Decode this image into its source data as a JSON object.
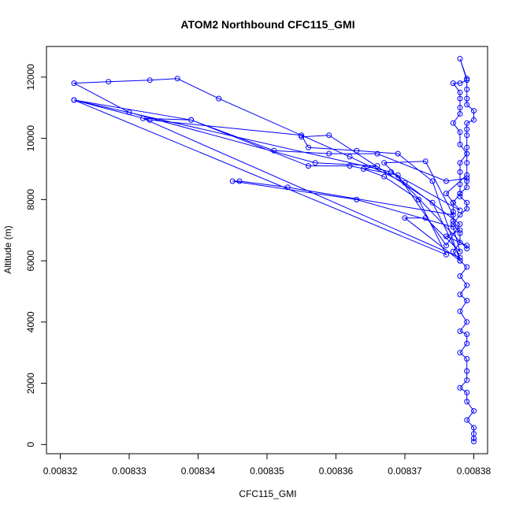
{
  "chart_data": {
    "type": "line",
    "title": "ATOM2 Northbound CFC115_GMI",
    "xlabel": "CFC115_GMI",
    "ylabel": "Altitude (m)",
    "xlim": [
      0.008318,
      0.008382
    ],
    "ylim": [
      -300,
      13000
    ],
    "x_ticks": [
      0.00832,
      0.00833,
      0.00834,
      0.00835,
      0.00836,
      0.00837,
      0.00838
    ],
    "x_tick_labels": [
      "0.00832",
      "0.00833",
      "0.00834",
      "0.00835",
      "0.00836",
      "0.00837",
      "0.00838"
    ],
    "y_ticks": [
      0,
      2000,
      4000,
      6000,
      8000,
      10000,
      12000
    ],
    "y_tick_labels": [
      "0",
      "2000",
      "4000",
      "6000",
      "8000",
      "10000",
      "12000"
    ],
    "grid": false,
    "marker": "open-circle",
    "color": "#0000ff",
    "series": [
      {
        "points": [
          [
            0.00838,
            100
          ],
          [
            0.00838,
            200
          ],
          [
            0.00838,
            350
          ],
          [
            0.00838,
            550
          ],
          [
            0.008379,
            800
          ],
          [
            0.00838,
            1100
          ],
          [
            0.008379,
            1400
          ],
          [
            0.008379,
            1700
          ],
          [
            0.008378,
            1850
          ],
          [
            0.008379,
            2100
          ],
          [
            0.008379,
            2400
          ],
          [
            0.008379,
            2800
          ],
          [
            0.008378,
            3000
          ],
          [
            0.008379,
            3300
          ],
          [
            0.008379,
            3600
          ],
          [
            0.008378,
            3700
          ],
          [
            0.008379,
            4000
          ],
          [
            0.008378,
            4350
          ],
          [
            0.008379,
            4700
          ],
          [
            0.008378,
            4900
          ],
          [
            0.008379,
            5200
          ],
          [
            0.008378,
            5500
          ],
          [
            0.008379,
            5800
          ],
          [
            0.008378,
            6000
          ],
          [
            0.008377,
            6300
          ],
          [
            0.008378,
            6600
          ],
          [
            0.008378,
            6900
          ],
          [
            0.008377,
            7200
          ],
          [
            0.008378,
            7500
          ],
          [
            0.008379,
            7700
          ],
          [
            0.008379,
            7900
          ],
          [
            0.008378,
            8100
          ],
          [
            0.008378,
            8200
          ],
          [
            0.008379,
            8400
          ],
          [
            0.008379,
            8600
          ],
          [
            0.008379,
            8700
          ],
          [
            0.008376,
            8600
          ],
          [
            0.008366,
            9500
          ],
          [
            0.008359,
            9500
          ],
          [
            0.008351,
            9600
          ],
          [
            0.008339,
            10600
          ],
          [
            0.008322,
            11250
          ],
          [
            0.008368,
            8900
          ],
          [
            0.008378,
            7650
          ],
          [
            0.008377,
            7900
          ],
          [
            0.008376,
            8200
          ],
          [
            0.008379,
            8800
          ],
          [
            0.008379,
            9200
          ],
          [
            0.008379,
            9700
          ],
          [
            0.008379,
            10100
          ],
          [
            0.008379,
            10300
          ],
          [
            0.008379,
            10500
          ],
          [
            0.00838,
            10600
          ],
          [
            0.00838,
            10900
          ],
          [
            0.008379,
            11100
          ],
          [
            0.008379,
            11300
          ],
          [
            0.008379,
            11600
          ],
          [
            0.008379,
            11950
          ],
          [
            0.008378,
            12600
          ],
          [
            0.008379,
            11900
          ],
          [
            0.008378,
            11800
          ],
          [
            0.008377,
            11800
          ],
          [
            0.008378,
            11500
          ],
          [
            0.008378,
            11300
          ],
          [
            0.008378,
            11000
          ],
          [
            0.008378,
            10800
          ],
          [
            0.008377,
            10500
          ],
          [
            0.008378,
            10200
          ],
          [
            0.008378,
            9800
          ],
          [
            0.008379,
            9500
          ],
          [
            0.008378,
            9200
          ],
          [
            0.008378,
            8900
          ],
          [
            0.008378,
            8500
          ],
          [
            0.008378,
            8200
          ],
          [
            0.008377,
            7900
          ],
          [
            0.008377,
            7600
          ],
          [
            0.008377,
            7300
          ],
          [
            0.008378,
            7000
          ],
          [
            0.008376,
            6800
          ],
          [
            0.008379,
            6500
          ],
          [
            0.008379,
            6400
          ],
          [
            0.008367,
            9200
          ],
          [
            0.008373,
            9250
          ],
          [
            0.008377,
            7500
          ],
          [
            0.008353,
            8400
          ],
          [
            0.008346,
            8600
          ],
          [
            0.008345,
            8600
          ],
          [
            0.008363,
            8000
          ],
          [
            0.008377,
            7100
          ],
          [
            0.008378,
            6300
          ],
          [
            0.008373,
            7400
          ],
          [
            0.00837,
            7400
          ],
          [
            0.008378,
            6000
          ],
          [
            0.008374,
            8600
          ],
          [
            0.008369,
            9500
          ],
          [
            0.008363,
            9600
          ],
          [
            0.008356,
            9700
          ],
          [
            0.008355,
            10100
          ],
          [
            0.008333,
            10600
          ],
          [
            0.008322,
            11250
          ],
          [
            0.008376,
            6200
          ],
          [
            0.008372,
            8000
          ],
          [
            0.008367,
            8750
          ],
          [
            0.008364,
            9000
          ],
          [
            0.008366,
            9100
          ],
          [
            0.008357,
            9200
          ],
          [
            0.00833,
            10850
          ],
          [
            0.008322,
            11800
          ],
          [
            0.008327,
            11850
          ],
          [
            0.008333,
            11900
          ],
          [
            0.008337,
            11950
          ],
          [
            0.008343,
            11300
          ],
          [
            0.008362,
            9400
          ],
          [
            0.00837,
            8550
          ],
          [
            0.008378,
            7200
          ],
          [
            0.008376,
            6500
          ],
          [
            0.008369,
            8800
          ],
          [
            0.008362,
            9100
          ],
          [
            0.008356,
            9100
          ],
          [
            0.008339,
            10600
          ],
          [
            0.008332,
            10650
          ],
          [
            0.008378,
            6100
          ],
          [
            0.008374,
            7900
          ],
          [
            0.008359,
            10100
          ],
          [
            0.008355,
            10050
          ]
        ]
      }
    ]
  }
}
